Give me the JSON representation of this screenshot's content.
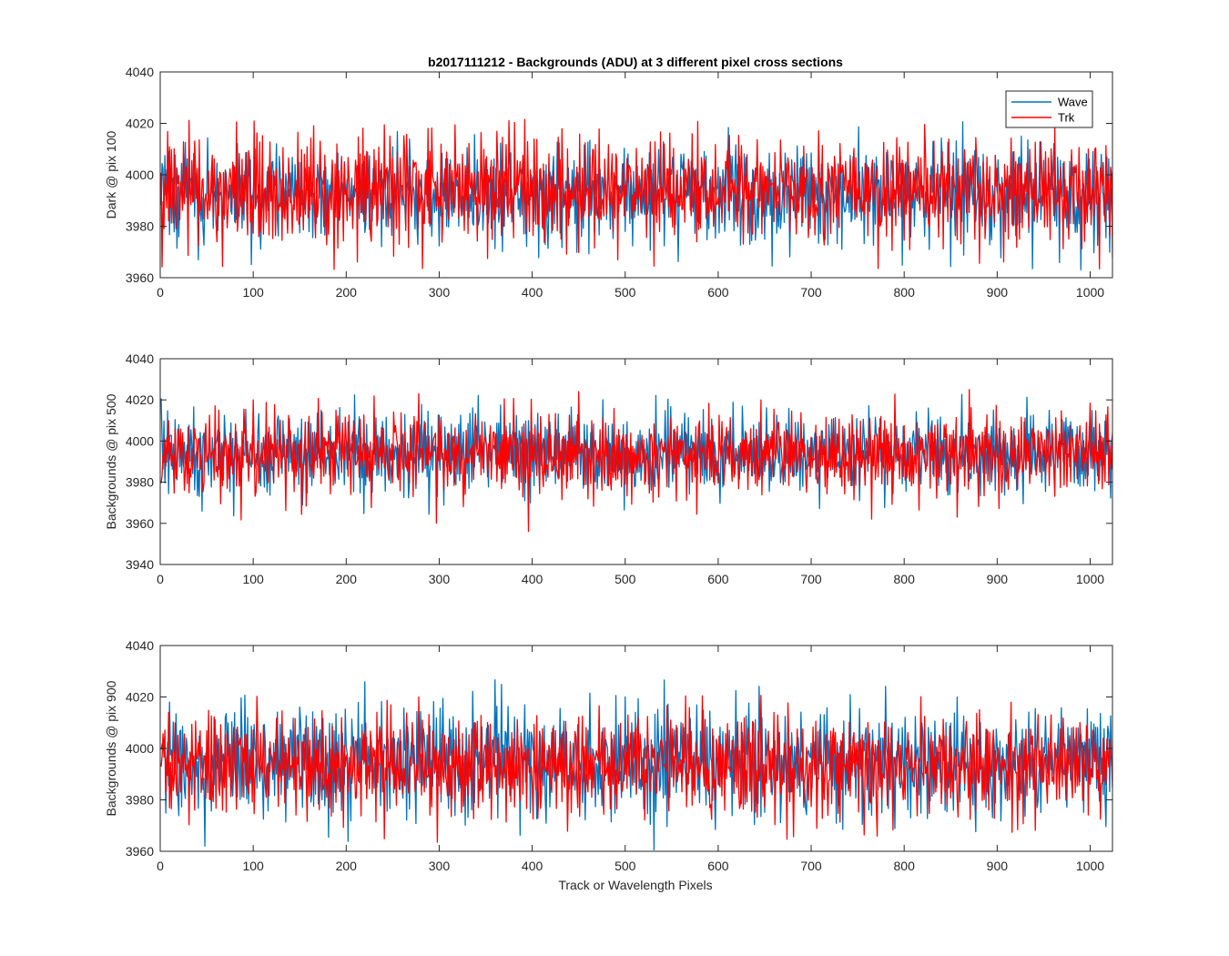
{
  "title": "b2017111212 - Backgrounds (ADU) at 3 different pixel cross sections",
  "xlabel": "Track or Wavelength Pixels",
  "legend": {
    "placement": "top-right of first panel",
    "entries": [
      {
        "label": "Wave",
        "color": "#0072BD"
      },
      {
        "label": "Trk",
        "color": "#FF0000"
      }
    ]
  },
  "chart_data": [
    {
      "type": "line",
      "ylabel": "Dark @ pix 100",
      "xlim": [
        0,
        1024
      ],
      "ylim": [
        3960,
        4040
      ],
      "xticks": [
        0,
        100,
        200,
        300,
        400,
        500,
        600,
        700,
        800,
        900,
        1000
      ],
      "yticks": [
        3960,
        3980,
        4000,
        4020,
        4040
      ],
      "legend": true,
      "series": [
        {
          "name": "Wave",
          "color": "#0072BD",
          "summary": {
            "n_points": 1024,
            "approx_mean": 3993,
            "approx_min": 3963,
            "approx_max": 4024
          },
          "values": [
            3991,
            4006,
            3995,
            3981,
            4001,
            3978,
            3998,
            3989,
            4008,
            3963,
            3999,
            3985,
            4003,
            3990,
            3972,
            4010,
            3996,
            3984,
            4002,
            3975,
            3994,
            3988,
            4011,
            3979,
            3997,
            3992,
            4005,
            3966,
            4000,
            3986,
            3993,
            4012,
            3983,
            3998,
            3990,
            4004,
            3977,
            3995,
            3987,
            4009,
            3969,
            3999,
            3991,
            3982,
            4007,
            3994,
            3980,
            4001,
            3989,
            3996,
            4013,
            3976,
            3993,
            3985,
            4003,
            3990,
            3971,
            4006,
            3998,
            3984,
            4014,
            3987,
            3995,
            3979,
            4002,
            3992,
            3967,
            4000,
            3988,
            4008
          ]
        },
        {
          "name": "Trk",
          "color": "#FF0000",
          "summary": {
            "n_points": 1024,
            "approx_mean": 3994,
            "approx_min": 3963,
            "approx_max": 4022
          },
          "values": [
            4009,
            3963,
            3998,
            3985,
            4004,
            3992,
            3977,
            4016,
            3988,
            3996,
            3974,
            4022,
            3990,
            3983,
            4007,
            3994,
            3971,
            4013,
            3986,
            3999,
            3979,
            4010,
            3991,
            3984,
            4018,
            3993,
            3975,
            4003,
            3989,
            3968,
            4017,
            3995,
            3982,
            4006,
            3990,
            3973,
            4020,
            3992,
            3986,
            4001,
            3967,
            4015,
            3994,
            3980,
            4008,
            3996,
            3970,
            4012,
            3988,
            3999,
            3976,
            4014,
            3991,
            3983,
            4005,
            3993,
            3978,
            4011,
            3987,
            3997,
            3972,
            4019,
            3990,
            3985,
            4004,
            3995,
            3969,
            4009,
            3992,
            4000
          ]
        }
      ]
    },
    {
      "type": "line",
      "ylabel": "Backgrounds @ pix 500",
      "xlim": [
        0,
        1024
      ],
      "ylim": [
        3940,
        4040
      ],
      "xticks": [
        0,
        100,
        200,
        300,
        400,
        500,
        600,
        700,
        800,
        900,
        1000
      ],
      "yticks": [
        3940,
        3960,
        3980,
        4000,
        4020,
        4040
      ],
      "legend": false,
      "series": [
        {
          "name": "Wave",
          "color": "#0072BD",
          "summary": {
            "n_points": 1024,
            "approx_mean": 3994,
            "approx_min": 3963,
            "approx_max": 4023
          },
          "values": [
            4008,
            3995,
            3982,
            4011,
            3977,
            3999,
            3988,
            4005,
            3963,
            3996,
            3990,
            4013,
            3979,
            3997,
            3986,
            4003,
            3991,
            3974,
            4010,
            3993,
            3984,
            4023,
            3989,
            3998,
            3976,
            4007,
            3992,
            3983,
            4014,
            3987,
            3996,
            3973,
            4006,
            3990,
            3985,
            4012,
            3994,
            3980,
            4002,
            3988,
            3997,
            3967,
            4009,
            3991,
            3983,
            4016,
            3993,
            3979,
            4004,
            3989,
            3998,
            3972,
            4011,
            3992,
            3986,
            4020,
            3990,
            3978,
            4003,
            3995,
            3984,
            4015,
            3988,
            3997,
            3975,
            4008,
            3993,
            3981,
            4018,
            3991
          ]
        },
        {
          "name": "Trk",
          "color": "#FF0000",
          "summary": {
            "n_points": 1024,
            "approx_mean": 3995,
            "approx_min": 3955,
            "approx_max": 4025
          },
          "values": [
            3993,
            3980,
            4000,
            3987,
            4006,
            3976,
            3995,
            3989,
            4011,
            3983,
            3998,
            3969,
            4004,
            3991,
            3985,
            4014,
            3955,
            3997,
            3990,
            4023,
            3982,
            3999,
            3988,
            4008,
            3974,
            3996,
            3992,
            4005,
            3979,
            4025,
            3987,
            3994,
            3984,
            4010,
            3991,
            3977,
            4002,
            3989,
            3998,
            3972,
            4012,
            3993,
            3985,
            4007,
            3990,
            3962,
            3997,
            3988,
            4015,
            3983,
            3999,
            3986,
            4009,
            3994,
            3978,
            4003,
            3991,
            3984,
            4018,
            3988,
            3996,
            3975,
            4006,
            3992,
            3963,
            4001,
            3989,
            4011,
            3986,
            3999
          ]
        }
      ]
    },
    {
      "type": "line",
      "ylabel": "Backgrounds @ pix 900",
      "xlim": [
        0,
        1024
      ],
      "ylim": [
        3960,
        4040
      ],
      "xticks": [
        0,
        100,
        200,
        300,
        400,
        500,
        600,
        700,
        800,
        900,
        1000
      ],
      "yticks": [
        3960,
        3980,
        4000,
        4020,
        4040
      ],
      "legend": false,
      "series": [
        {
          "name": "Wave",
          "color": "#0072BD",
          "summary": {
            "n_points": 1024,
            "approx_mean": 3995,
            "approx_min": 3959,
            "approx_max": 4027
          },
          "values": [
            4003,
            3990,
            4021,
            3984,
            3998,
            3970,
            4012,
            3993,
            3986,
            4027,
            3989,
            3997,
            3978,
            4016,
            3992,
            3983,
            4022,
            3988,
            3999,
            3972,
            4009,
            3994,
            3985,
            4019,
            3990,
            3996,
            3976,
            4011,
            3993,
            3982,
            4015,
            3988,
            3998,
            3974,
            4006,
            3991,
            3959,
            4003,
            3990,
            3997,
            3979,
            4024,
            3992,
            3985,
            4013,
            3989,
            3998,
            3971,
            4008,
            3994,
            3983,
            4017,
            3990,
            3996,
            3965,
            4010,
            3993,
            3986,
            4020,
            3991,
            3997,
            3976,
            4005,
            3989,
            3967,
            4014,
            3992,
            3999,
            3981,
            4015
          ]
        },
        {
          "name": "Trk",
          "color": "#FF0000",
          "summary": {
            "n_points": 1024,
            "approx_mean": 3994,
            "approx_min": 3959,
            "approx_max": 4021
          },
          "values": [
            3980,
            4010,
            3992,
            3985,
            4008,
            3968,
            3996,
            3988,
            4014,
            3981,
            3997,
            3969,
            4006,
            3991,
            3984,
            4013,
            3990,
            3966,
            4003,
            3987,
            3996,
            3978,
            4011,
            3993,
            3984,
            4015,
            3989,
            3998,
            3975,
            4007,
            3959,
            3994,
            3986,
            4021,
            3990,
            3997,
            3980,
            4009,
            3992,
            3985,
            4014,
            3988,
            3996,
            3972,
            4005,
            3991,
            3983,
            4012,
            3989,
            3998,
            3977,
            4008,
            3993,
            3986,
            4016,
            3990,
            3970,
            4004,
            3992,
            3985,
            4011,
            3988,
            3996,
            3976,
            4007,
            3991,
            3984,
            4013,
            3989,
            3997
          ]
        }
      ]
    }
  ]
}
